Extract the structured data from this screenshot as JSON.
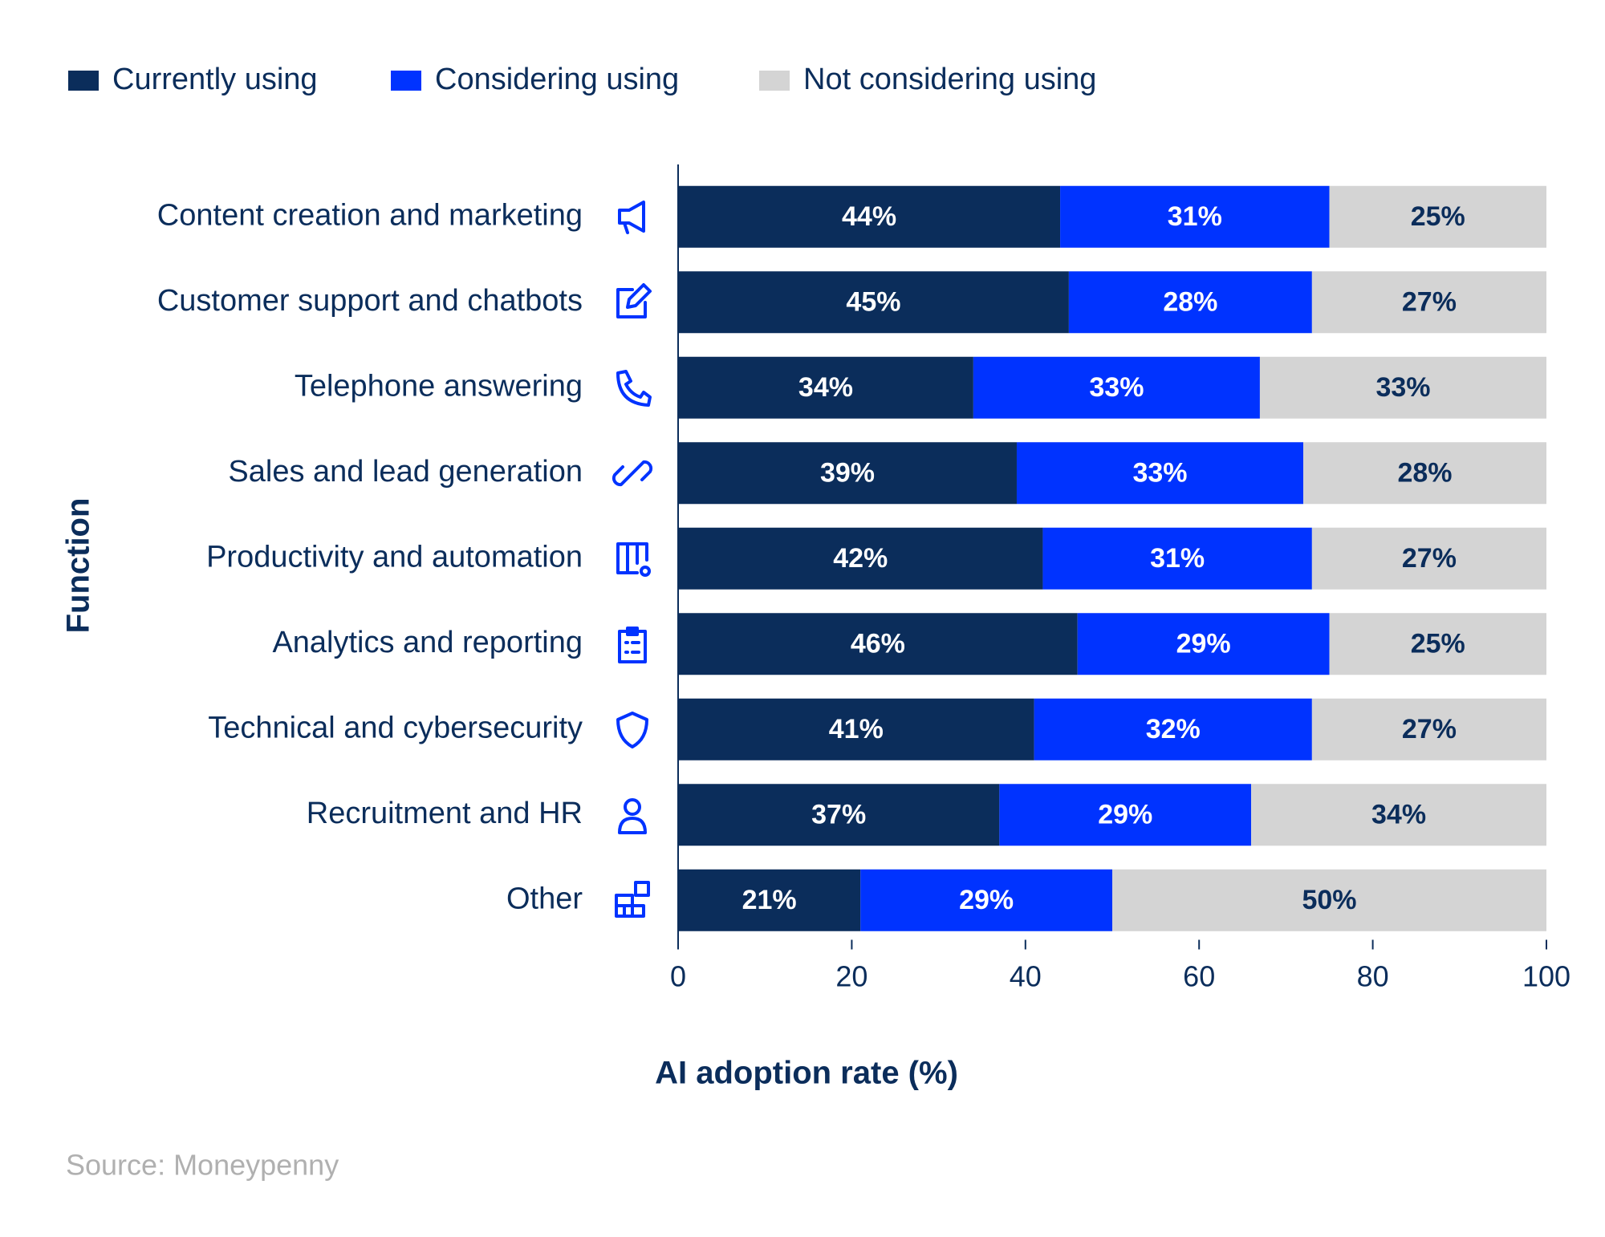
{
  "chart_data": {
    "type": "stacked-bar-horizontal",
    "x_label": "AI adoption rate (%)",
    "y_label": "Function",
    "source": "Source: Moneypenny",
    "categories": [
      "Content creation and marketing",
      "Customer support and chatbots",
      "Telephone answering",
      "Sales and lead generation",
      "Productivity and automation",
      "Analytics and reporting",
      "Technical and cybersecurity",
      "Recruitment and HR",
      "Other"
    ],
    "series": [
      {
        "name": "Currently using",
        "color": "#0b2d5b",
        "values": [
          44,
          45,
          34,
          39,
          42,
          46,
          41,
          37,
          21
        ],
        "value_labels": [
          "44%",
          "45%",
          "34%",
          "39%",
          "42%",
          "46%",
          "41%",
          "37%",
          "21%"
        ]
      },
      {
        "name": "Considering using",
        "color": "#0033ff",
        "values": [
          31,
          28,
          33,
          33,
          31,
          29,
          32,
          29,
          29
        ],
        "value_labels": [
          "31%",
          "28%",
          "33%",
          "33%",
          "31%",
          "29%",
          "32%",
          "29%",
          "29%"
        ]
      },
      {
        "name": "Not considering using",
        "color": "#d4d4d4",
        "values": [
          25,
          27,
          33,
          28,
          27,
          25,
          27,
          34,
          50
        ],
        "value_labels": [
          "25%",
          "27%",
          "33%",
          "28%",
          "27%",
          "25%",
          "27%",
          "34%",
          "50%"
        ]
      }
    ],
    "xlim": [
      0,
      100
    ],
    "xticks": [
      0,
      20,
      40,
      60,
      80,
      100
    ]
  }
}
